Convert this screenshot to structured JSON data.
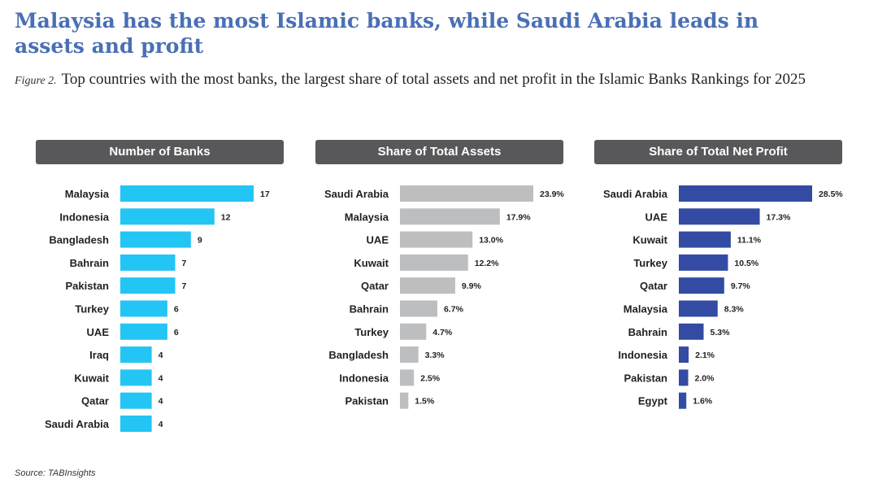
{
  "header": {
    "title": "Malaysia has the most Islamic banks, while Saudi Arabia leads in assets and profit",
    "figure_label": "Figure 2.",
    "caption": "Top countries with the most banks, the largest share of total assets and net profit in the Islamic Banks Rankings for 2025"
  },
  "source": "Source: TABInsights",
  "colors": {
    "banks": "#22c5f3",
    "assets": "#bcbec0",
    "profit": "#334ba3",
    "header_bg": "#58585a"
  },
  "chart_data": [
    {
      "type": "bar",
      "orientation": "horizontal",
      "title": "Number of Banks",
      "categories": [
        "Malaysia",
        "Indonesia",
        "Bangladesh",
        "Bahrain",
        "Pakistan",
        "Turkey",
        "UAE",
        "Iraq",
        "Kuwait",
        "Qatar",
        "Saudi Arabia"
      ],
      "values": [
        17,
        12,
        9,
        7,
        7,
        6,
        6,
        4,
        4,
        4,
        4
      ],
      "value_labels": [
        "17",
        "12",
        "9",
        "7",
        "7",
        "6",
        "6",
        "4",
        "4",
        "4",
        "4"
      ],
      "xlim": [
        0,
        17
      ],
      "grid": false
    },
    {
      "type": "bar",
      "orientation": "horizontal",
      "title": "Share of Total Assets",
      "categories": [
        "Saudi Arabia",
        "Malaysia",
        "UAE",
        "Kuwait",
        "Qatar",
        "Bahrain",
        "Turkey",
        "Bangladesh",
        "Indonesia",
        "Pakistan"
      ],
      "values": [
        23.9,
        17.9,
        13.0,
        12.2,
        9.9,
        6.7,
        4.7,
        3.3,
        2.5,
        1.5
      ],
      "value_labels": [
        "23.9%",
        "17.9%",
        "13.0%",
        "12.2%",
        "9.9%",
        "6.7%",
        "4.7%",
        "3.3%",
        "2.5%",
        "1.5%"
      ],
      "xlim": [
        0,
        23.9
      ],
      "grid": false
    },
    {
      "type": "bar",
      "orientation": "horizontal",
      "title": "Share of Total Net Profit",
      "categories": [
        "Saudi Arabia",
        "UAE",
        "Kuwait",
        "Turkey",
        "Qatar",
        "Malaysia",
        "Bahrain",
        "Indonesia",
        "Pakistan",
        "Egypt"
      ],
      "values": [
        28.5,
        17.3,
        11.1,
        10.5,
        9.7,
        8.3,
        5.3,
        2.1,
        2.0,
        1.6
      ],
      "value_labels": [
        "28.5%",
        "17.3%",
        "11.1%",
        "10.5%",
        "9.7%",
        "8.3%",
        "5.3%",
        "2.1%",
        "2.0%",
        "1.6%"
      ],
      "xlim": [
        0,
        28.5
      ],
      "grid": false
    }
  ]
}
